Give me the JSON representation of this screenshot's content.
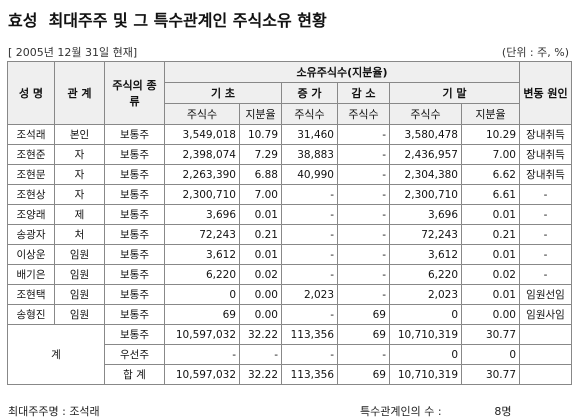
{
  "header": {
    "title": "효성  최대주주 및 그 특수관계인 주식소유 현황",
    "date": "[ 2005년 12월 31일 현재]",
    "unit": "(단위 : 주, %)"
  },
  "table": {
    "columns": {
      "name": "성 명",
      "relation": "관 계",
      "type": "주식의 종류",
      "owned": "소유주식수(지분율)",
      "begin": "기 초",
      "increase": "증 가",
      "decrease": "감 소",
      "end": "기 말",
      "shares": "주식수",
      "ratio": "지분율",
      "cause": "변동 원인"
    },
    "rows": [
      [
        "조석래",
        "본인",
        "보통주",
        "3,549,018",
        "10.79",
        "31,460",
        "-",
        "3,580,478",
        "10.29",
        "장내취득"
      ],
      [
        "조현준",
        "자",
        "보통주",
        "2,398,074",
        "7.29",
        "38,883",
        "-",
        "2,436,957",
        "7.00",
        "장내취득"
      ],
      [
        "조현문",
        "자",
        "보통주",
        "2,263,390",
        "6.88",
        "40,990",
        "-",
        "2,304,380",
        "6.62",
        "장내취득"
      ],
      [
        "조현상",
        "자",
        "보통주",
        "2,300,710",
        "7.00",
        "-",
        "-",
        "2,300,710",
        "6.61",
        "-"
      ],
      [
        "조양래",
        "제",
        "보통주",
        "3,696",
        "0.01",
        "-",
        "-",
        "3,696",
        "0.01",
        "-"
      ],
      [
        "송광자",
        "처",
        "보통주",
        "72,243",
        "0.21",
        "-",
        "-",
        "72,243",
        "0.21",
        "-"
      ],
      [
        "이상운",
        "임원",
        "보통주",
        "3,612",
        "0.01",
        "-",
        "-",
        "3,612",
        "0.01",
        "-"
      ],
      [
        "배기은",
        "임원",
        "보통주",
        "6,220",
        "0.02",
        "-",
        "-",
        "6,220",
        "0.02",
        "-"
      ],
      [
        "조현택",
        "임원",
        "보통주",
        "0",
        "0.00",
        "2,023",
        "-",
        "2,023",
        "0.01",
        "임원선임"
      ],
      [
        "송형진",
        "임원",
        "보통주",
        "69",
        "0.00",
        "-",
        "69",
        "0",
        "0.00",
        "임원사임"
      ]
    ],
    "total_label": "계",
    "totals": [
      [
        "보통주",
        "10,597,032",
        "32.22",
        "113,356",
        "69",
        "10,710,319",
        "30.77"
      ],
      [
        "우선주",
        "-",
        "-",
        "-",
        "-",
        "0",
        "0"
      ],
      [
        "합 계",
        "10,597,032",
        "32.22",
        "113,356",
        "69",
        "10,710,319",
        "30.77"
      ]
    ]
  },
  "footer": {
    "largest_label": "최대주주명 :",
    "largest": "조석래",
    "related_label": "특수관계인의 수 :",
    "related": "8명"
  }
}
